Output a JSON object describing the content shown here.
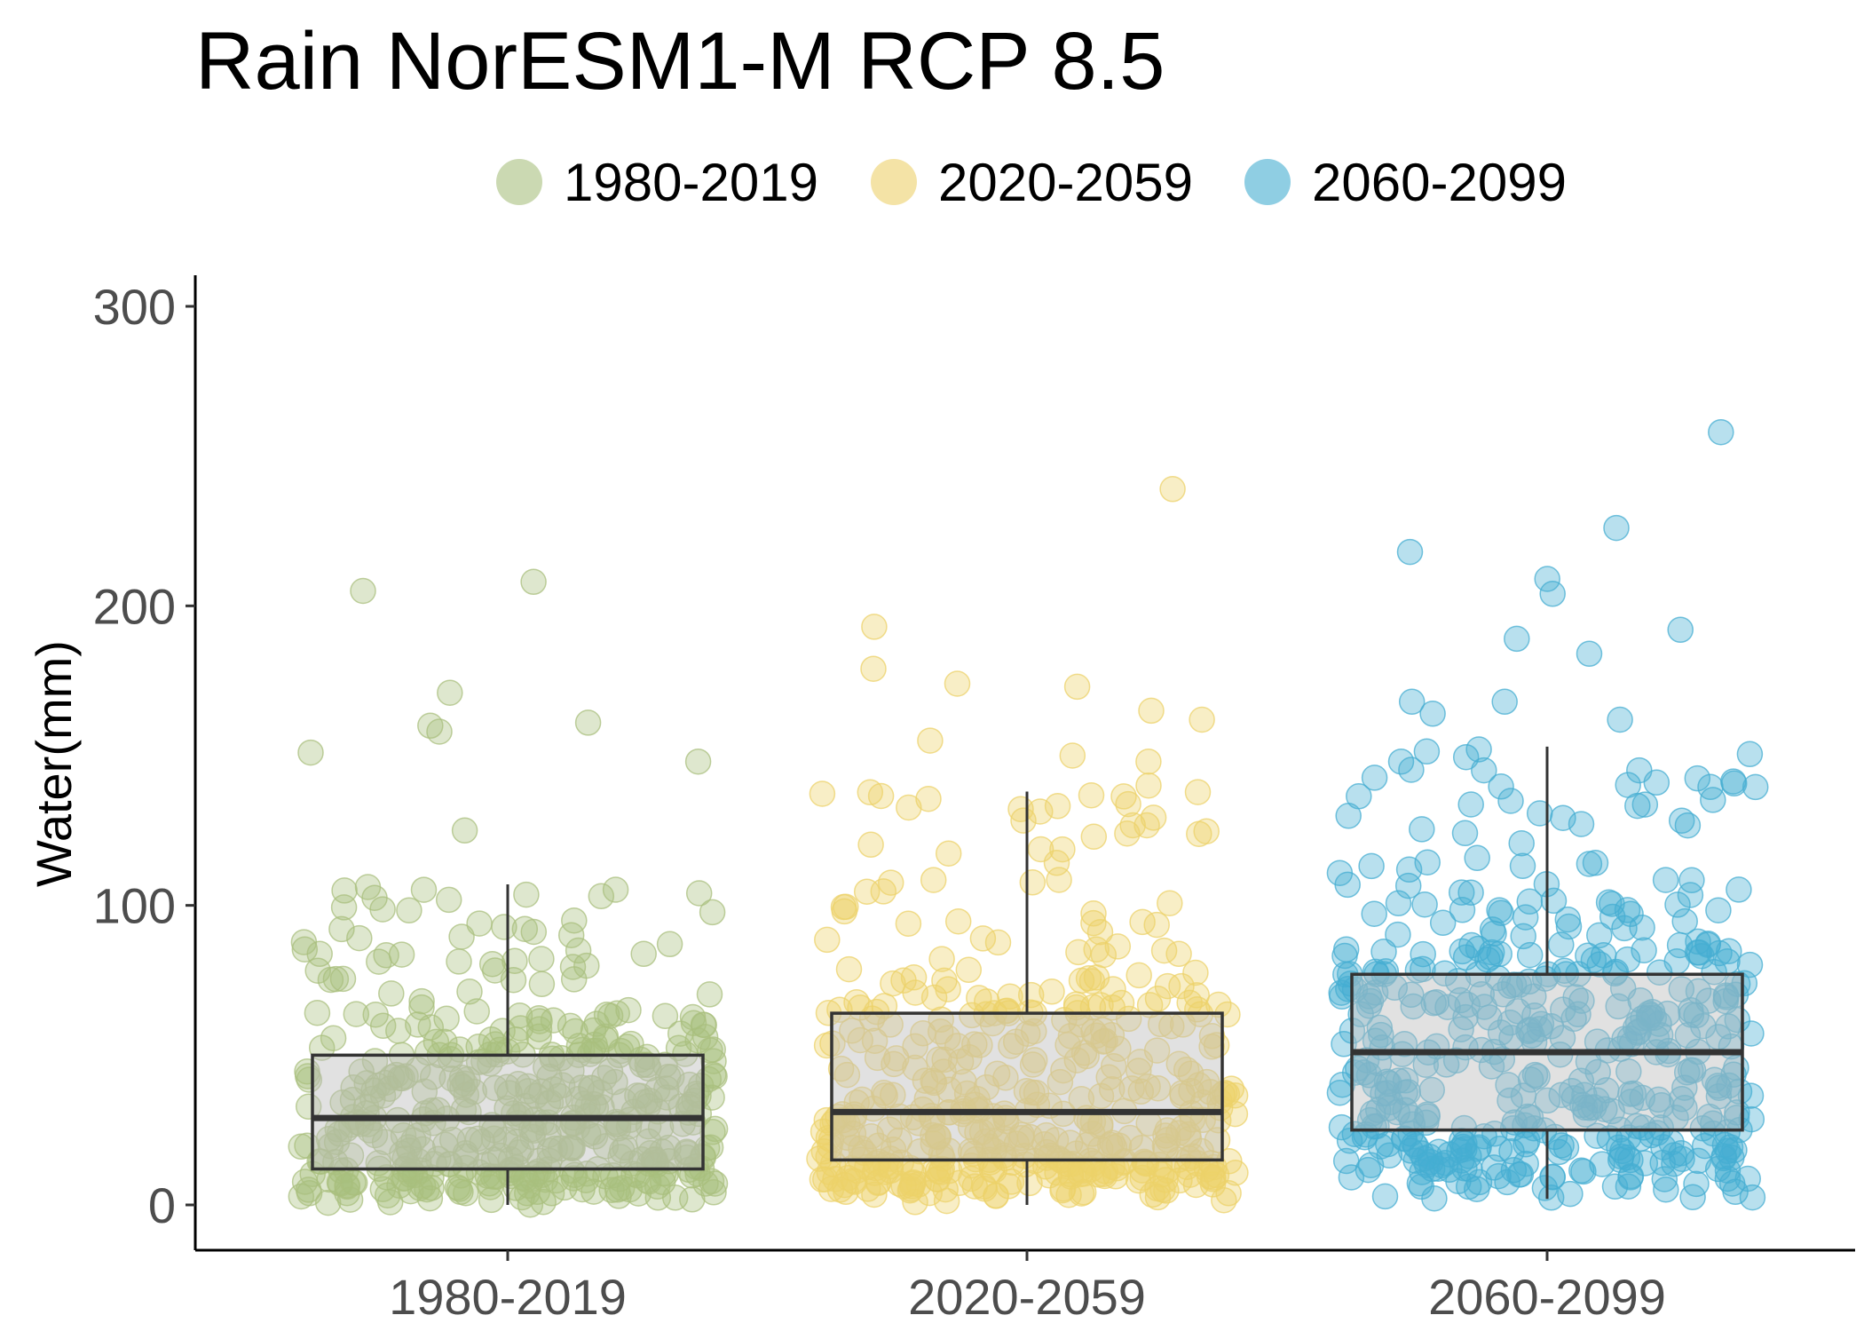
{
  "chart_data": {
    "type": "boxplot",
    "title": "Rain NorESM1-M RCP 8.5",
    "xlabel": "",
    "ylabel": "Water(mm)",
    "ylim": [
      -14,
      310
    ],
    "yticks": [
      0,
      100,
      200,
      300
    ],
    "grid": false,
    "legend_position": "top",
    "categories": [
      "1980-2019",
      "2020-2059",
      "2060-2099"
    ],
    "series": [
      {
        "name": "1980-2019",
        "color": "#a9bf7e",
        "box": {
          "whisker_low": 0,
          "q1": 12,
          "median": 29,
          "q3": 50,
          "whisker_high": 107
        },
        "outliers": [
          125,
          151,
          148,
          158,
          160,
          161,
          171,
          205,
          208
        ]
      },
      {
        "name": "2020-2059",
        "color": "#ecd16a",
        "box": {
          "whisker_low": 0,
          "q1": 15,
          "median": 31,
          "q3": 64,
          "whisker_high": 138
        },
        "outliers": [
          140,
          148,
          150,
          155,
          162,
          165,
          173,
          174,
          179,
          193,
          239
        ]
      },
      {
        "name": "2060-2099",
        "color": "#45aed1",
        "box": {
          "whisker_low": 2,
          "q1": 25,
          "median": 51,
          "q3": 77,
          "whisker_high": 153
        },
        "outliers": [
          162,
          164,
          168,
          168,
          184,
          189,
          192,
          204,
          209,
          218,
          226,
          258
        ]
      }
    ]
  }
}
